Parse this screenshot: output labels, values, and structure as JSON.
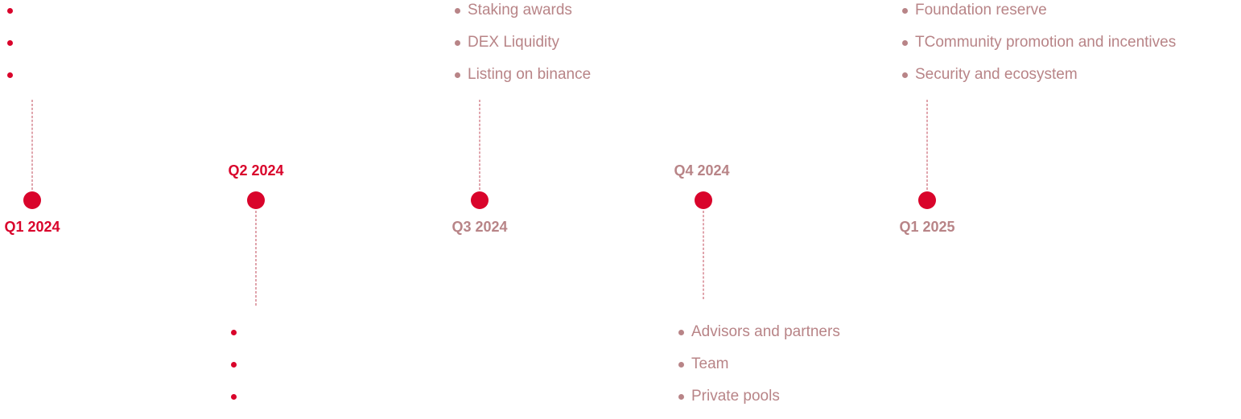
{
  "colors": {
    "accent": "#d9042b",
    "muted": "#b88487"
  },
  "milestones": [
    {
      "label": "Q1 2024",
      "active": true,
      "items": [
        "",
        "",
        ""
      ]
    },
    {
      "label": "Q2 2024",
      "active": true,
      "items": [
        "",
        "",
        ""
      ]
    },
    {
      "label": "Q3 2024",
      "active": false,
      "items": [
        "Staking awards",
        "DEX Liquidity",
        "Listing on binance"
      ]
    },
    {
      "label": "Q4 2024",
      "active": false,
      "items": [
        "Advisors and partners",
        "Team",
        "Private pools"
      ]
    },
    {
      "label": "Q1 2025",
      "active": false,
      "items": [
        "Foundation reserve",
        "TCommunity promotion and incentives",
        "Security and ecosystem"
      ]
    }
  ]
}
